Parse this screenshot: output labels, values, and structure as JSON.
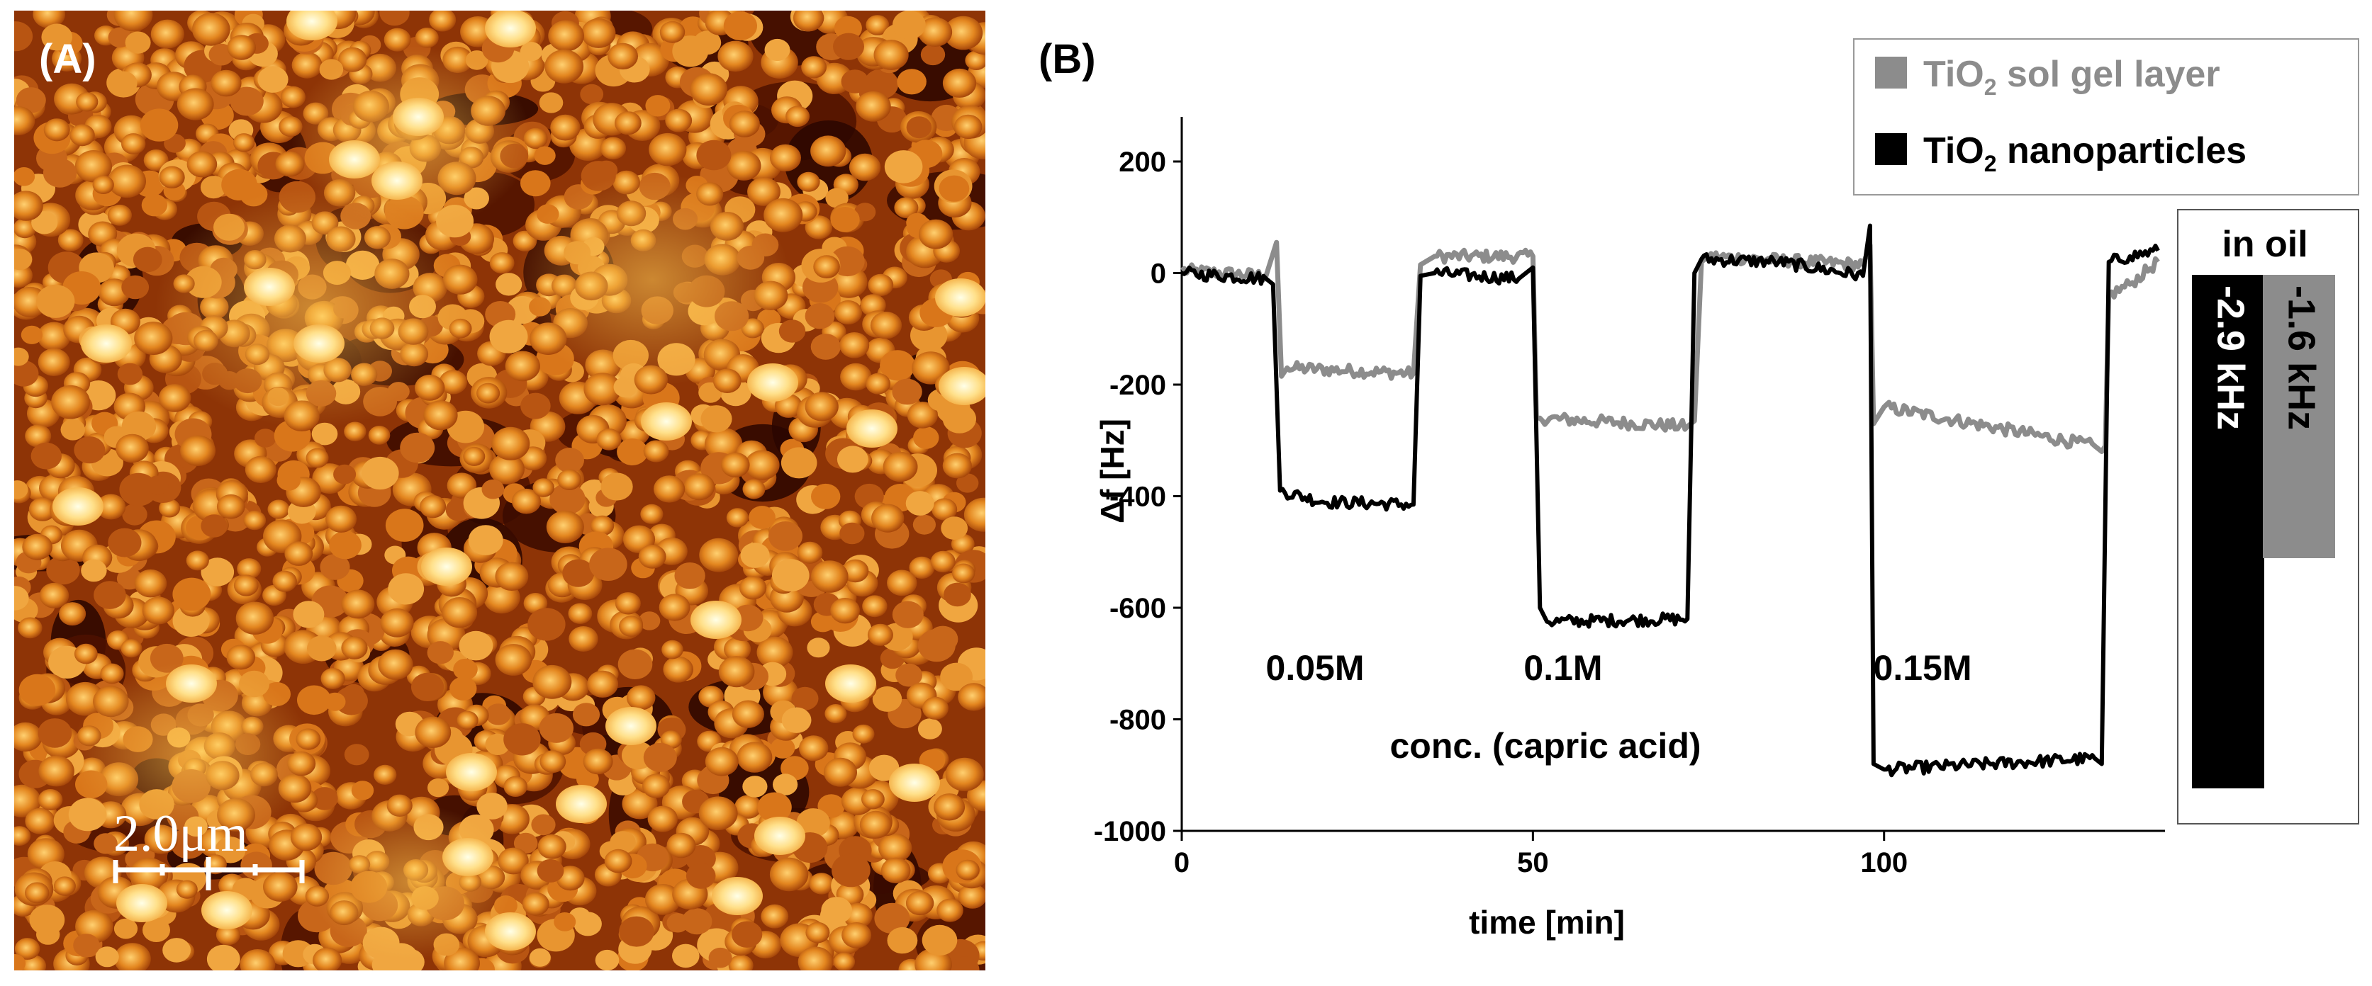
{
  "panels": {
    "a": {
      "label": "(A)",
      "scale_bar": {
        "label": "2.0μm",
        "length_um": 2.0
      }
    },
    "b": {
      "label": "(B)"
    }
  },
  "chart_data": {
    "type": "line",
    "title": "",
    "xlabel": "time [min]",
    "ylabel": "Δf [Hz]",
    "xlim": [
      0,
      140
    ],
    "ylim": [
      -1000,
      280
    ],
    "xticks": [
      0,
      50,
      100
    ],
    "yticks": [
      200,
      0,
      -200,
      -400,
      -600,
      -800,
      -1000
    ],
    "grid": false,
    "legend": {
      "position": "top-right",
      "entries": [
        {
          "base": "TiO",
          "sub": "2",
          "rest": " sol gel layer",
          "color": "#8c8c8c"
        },
        {
          "base": "TiO",
          "sub": "2",
          "rest": " nanoparticles",
          "color": "#000000"
        }
      ]
    },
    "series": [
      {
        "name": "TiO2 sol gel layer",
        "color": "#8c8c8c",
        "x": [
          0,
          12,
          13.5,
          14.2,
          15,
          33,
          34,
          36,
          50,
          50.5,
          51,
          72,
          73,
          74,
          75,
          97,
          98,
          98.5,
          100,
          130,
          131,
          131.5,
          132,
          135,
          139
        ],
        "y": [
          5,
          -5,
          55,
          -185,
          -170,
          -180,
          15,
          30,
          30,
          -260,
          -260,
          -275,
          -265,
          20,
          30,
          15,
          50,
          -270,
          -240,
          -310,
          -320,
          -310,
          -40,
          -20,
          20
        ]
      },
      {
        "name": "TiO2 nanoparticles",
        "color": "#000000",
        "x": [
          0,
          12,
          13,
          14,
          20,
          33,
          34,
          36,
          48,
          50,
          51,
          52,
          72,
          73,
          74,
          85,
          97,
          98,
          98.5,
          100,
          130,
          131,
          132,
          135,
          139
        ],
        "y": [
          0,
          -10,
          -20,
          -390,
          -410,
          -415,
          -5,
          0,
          -10,
          10,
          -600,
          -625,
          -620,
          0,
          25,
          20,
          -5,
          85,
          -880,
          -890,
          -870,
          -880,
          20,
          30,
          40
        ]
      }
    ],
    "annotations": [
      "0.05M",
      "0.1M",
      "0.15M",
      "conc. (capric acid)"
    ],
    "inset": {
      "title": "in oil",
      "bars": [
        {
          "label": "-2.9 kHz",
          "value_khz": -2.9,
          "color": "#000000"
        },
        {
          "label": "-1.6 kHz",
          "value_khz": -1.6,
          "color": "#8c8c8c"
        }
      ]
    }
  }
}
